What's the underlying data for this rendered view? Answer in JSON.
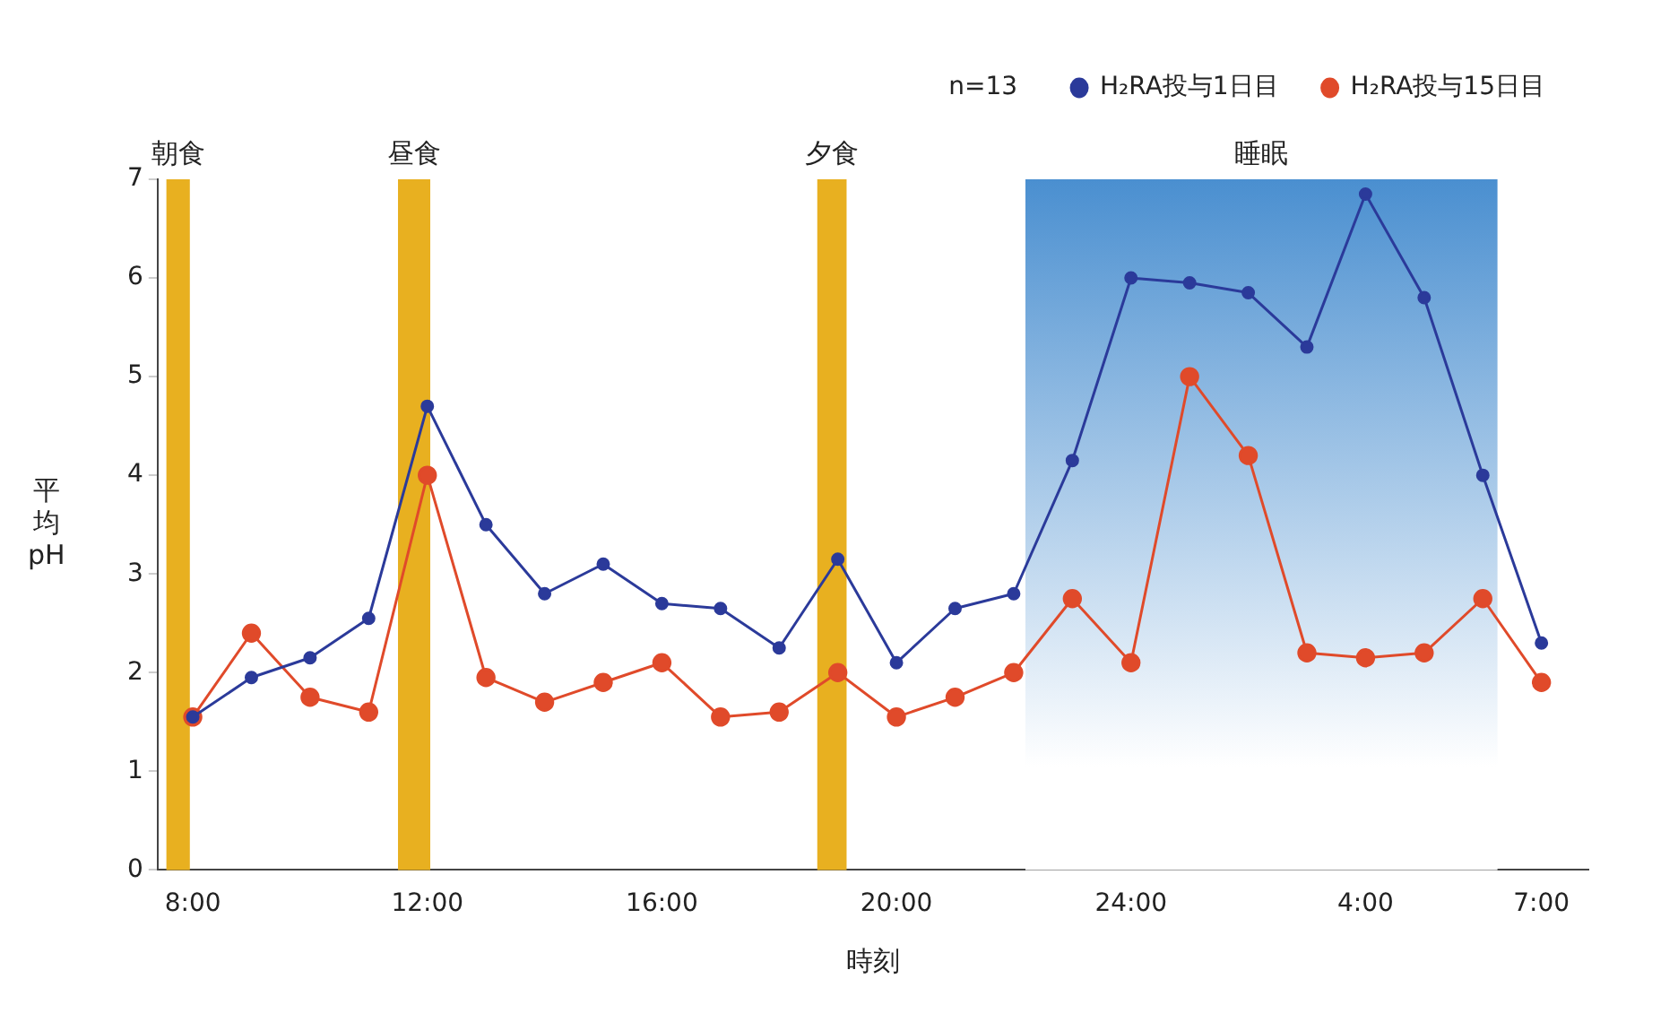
{
  "chart_data": {
    "type": "line",
    "xlabel": "時刻",
    "ylabel": "平均pH",
    "annotations": [
      "n=13"
    ],
    "x": [
      "2000-01-01T08:00",
      "2000-01-01T09:00",
      "2000-01-01T10:00",
      "2000-01-01T11:00",
      "2000-01-01T12:00",
      "2000-01-01T13:00",
      "2000-01-01T14:00",
      "2000-01-01T15:00",
      "2000-01-01T16:00",
      "2000-01-01T17:00",
      "2000-01-01T18:00",
      "2000-01-01T19:00",
      "2000-01-01T20:00",
      "2000-01-01T21:00",
      "2000-01-01T22:00",
      "2000-01-01T23:00",
      "2000-01-02T00:00",
      "2000-01-02T01:00",
      "2000-01-02T02:00",
      "2000-01-02T03:00",
      "2000-01-02T04:00",
      "2000-01-02T05:00",
      "2000-01-02T06:00",
      "2000-01-02T07:00"
    ],
    "series": [
      {
        "name": "H₂RA投与1日目",
        "color": "#2b3a9a",
        "values": [
          1.55,
          1.95,
          2.15,
          2.55,
          4.7,
          3.5,
          2.8,
          3.1,
          2.7,
          2.65,
          2.25,
          3.15,
          2.1,
          2.65,
          2.8,
          4.15,
          6.0,
          5.95,
          5.85,
          5.3,
          6.85,
          5.8,
          4.0,
          2.3
        ]
      },
      {
        "name": "H₂RA投与15日目",
        "color": "#e04a2a",
        "values": [
          1.55,
          2.4,
          1.75,
          1.6,
          4.0,
          1.95,
          1.7,
          1.9,
          2.1,
          1.55,
          1.6,
          2.0,
          1.55,
          1.75,
          2.0,
          2.75,
          2.1,
          5.0,
          4.2,
          2.2,
          2.15,
          2.2,
          2.75,
          1.9
        ]
      }
    ],
    "xlim": [
      "2000-01-01T07:24",
      "2000-01-02T07:48"
    ],
    "xticks": [
      {
        "value": "2000-01-01T08:00",
        "label": "8:00"
      },
      {
        "value": "2000-01-01T12:00",
        "label": "12:00"
      },
      {
        "value": "2000-01-01T16:00",
        "label": "16:00"
      },
      {
        "value": "2000-01-01T20:00",
        "label": "20:00"
      },
      {
        "value": "2000-01-02T00:00",
        "label": "24:00"
      },
      {
        "value": "2000-01-02T04:00",
        "label": "4:00"
      },
      {
        "value": "2000-01-02T07:00",
        "label": "7:00"
      }
    ],
    "ylim": [
      0,
      7
    ],
    "yticks": [
      0,
      1,
      2,
      3,
      4,
      5,
      6,
      7
    ],
    "bands": [
      {
        "axis": "x",
        "from": "2000-01-01T07:33",
        "to": "2000-01-01T07:57",
        "label": "朝食",
        "color": "#e8b020"
      },
      {
        "axis": "x",
        "from": "2000-01-01T11:30",
        "to": "2000-01-01T12:03",
        "label": "昼食",
        "color": "#e8b020"
      },
      {
        "axis": "x",
        "from": "2000-01-01T18:39",
        "to": "2000-01-01T19:09",
        "label": "夕食",
        "color": "#e8b020"
      },
      {
        "axis": "x",
        "from": "2000-01-01T22:12",
        "to": "2000-01-02T06:15",
        "label": "睡眠",
        "color": "#4a8fd0"
      }
    ],
    "grid": false,
    "legend": "top right",
    "marker": "circle",
    "line_style": "solid"
  }
}
